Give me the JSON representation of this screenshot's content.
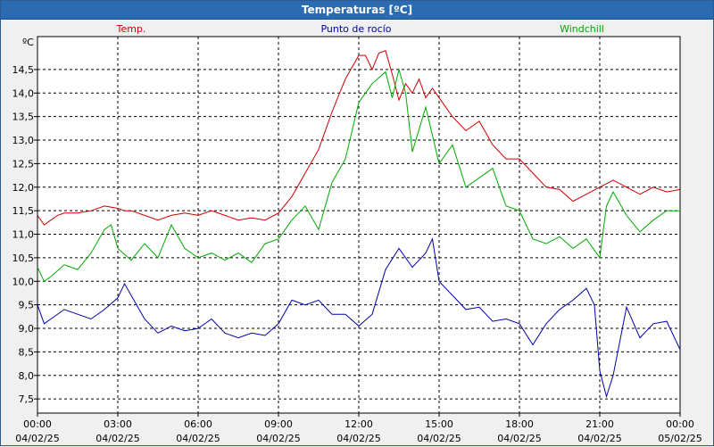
{
  "window": {
    "title": "Temperaturas [ºC]"
  },
  "chart_data": {
    "type": "line",
    "unit_label": "ºC",
    "grid": true,
    "legend_placement": "top",
    "ylim": [
      7.2,
      15.2
    ],
    "y_ticks": [
      7.5,
      8.0,
      8.5,
      9.0,
      9.5,
      10.0,
      10.5,
      11.0,
      11.5,
      12.0,
      12.5,
      13.0,
      13.5,
      14.0,
      14.5
    ],
    "y_tick_labels": [
      "7,5",
      "8,0",
      "8,5",
      "9,0",
      "9,5",
      "10,0",
      "10,5",
      "11,0",
      "11,5",
      "12,0",
      "12,5",
      "13,0",
      "13,5",
      "14,0",
      "14,5"
    ],
    "xlim": [
      0,
      24
    ],
    "x_ticks": [
      {
        "x": 0,
        "time": "00:00",
        "date": "04/02/25"
      },
      {
        "x": 3,
        "time": "03:00",
        "date": "04/02/25"
      },
      {
        "x": 6,
        "time": "06:00",
        "date": "04/02/25"
      },
      {
        "x": 9,
        "time": "09:00",
        "date": "04/02/25"
      },
      {
        "x": 12,
        "time": "12:00",
        "date": "04/02/25"
      },
      {
        "x": 15,
        "time": "15:00",
        "date": "04/02/25"
      },
      {
        "x": 18,
        "time": "18:00",
        "date": "04/02/25"
      },
      {
        "x": 21,
        "time": "21:00",
        "date": "04/02/25"
      },
      {
        "x": 24,
        "time": "00:00",
        "date": "05/02/25"
      }
    ],
    "series": [
      {
        "name": "Temp.",
        "color": "#cc0000",
        "x": [
          0,
          0.25,
          0.5,
          0.75,
          1,
          1.5,
          2,
          2.5,
          3,
          3.25,
          3.5,
          4,
          4.5,
          5,
          5.5,
          6,
          6.5,
          7,
          7.5,
          8,
          8.5,
          9,
          9.5,
          10,
          10.5,
          11,
          11.5,
          12,
          12.25,
          12.5,
          12.75,
          13,
          13.25,
          13.5,
          13.75,
          14,
          14.25,
          14.5,
          14.75,
          15,
          15.5,
          16,
          16.5,
          17,
          17.5,
          18,
          18.5,
          19,
          19.5,
          20,
          20.5,
          21,
          21.5,
          22,
          22.5,
          23,
          23.5,
          24
        ],
        "y": [
          11.4,
          11.2,
          11.3,
          11.4,
          11.45,
          11.45,
          11.5,
          11.6,
          11.55,
          11.5,
          11.5,
          11.4,
          11.3,
          11.4,
          11.45,
          11.4,
          11.5,
          11.4,
          11.3,
          11.35,
          11.3,
          11.45,
          11.8,
          12.3,
          12.8,
          13.6,
          14.3,
          14.8,
          14.8,
          14.5,
          14.85,
          14.9,
          14.4,
          13.85,
          14.2,
          14.0,
          14.3,
          13.9,
          14.1,
          13.9,
          13.5,
          13.2,
          13.4,
          12.9,
          12.6,
          12.6,
          12.3,
          12.0,
          11.95,
          11.7,
          11.85,
          12.0,
          12.15,
          12.0,
          11.85,
          12.0,
          11.9,
          11.95
        ]
      },
      {
        "name": "Punto de rocío",
        "color": "#0000aa",
        "x": [
          0,
          0.25,
          0.5,
          1,
          1.5,
          2,
          2.5,
          3,
          3.25,
          3.5,
          4,
          4.5,
          5,
          5.5,
          6,
          6.5,
          7,
          7.5,
          8,
          8.5,
          9,
          9.5,
          10,
          10.5,
          11,
          11.5,
          12,
          12.5,
          13,
          13.5,
          14,
          14.5,
          14.75,
          15,
          15.5,
          16,
          16.5,
          17,
          17.5,
          18,
          18.5,
          19,
          19.5,
          20,
          20.5,
          20.8,
          21,
          21.25,
          21.5,
          22,
          22.5,
          23,
          23.5,
          24
        ],
        "y": [
          9.5,
          9.1,
          9.2,
          9.4,
          9.3,
          9.2,
          9.4,
          9.65,
          9.95,
          9.7,
          9.2,
          8.9,
          9.05,
          8.95,
          9.0,
          9.2,
          8.9,
          8.8,
          8.9,
          8.85,
          9.1,
          9.6,
          9.5,
          9.6,
          9.3,
          9.3,
          9.05,
          9.3,
          10.25,
          10.7,
          10.3,
          10.6,
          10.9,
          10.0,
          9.7,
          9.4,
          9.45,
          9.15,
          9.2,
          9.1,
          8.65,
          9.1,
          9.4,
          9.6,
          9.85,
          9.5,
          8.1,
          7.55,
          8.0,
          9.45,
          8.8,
          9.1,
          9.15,
          8.55
        ]
      },
      {
        "name": "Windchill",
        "color": "#00aa00",
        "x": [
          0,
          0.25,
          0.5,
          1,
          1.5,
          2,
          2.5,
          2.75,
          3,
          3.5,
          4,
          4.5,
          5,
          5.5,
          6,
          6.5,
          7,
          7.5,
          8,
          8.5,
          9,
          9.5,
          10,
          10.5,
          11,
          11.5,
          12,
          12.5,
          13,
          13.25,
          13.5,
          13.75,
          14,
          14.5,
          15,
          15.5,
          16,
          16.5,
          17,
          17.5,
          18,
          18.5,
          19,
          19.5,
          20,
          20.5,
          21,
          21.25,
          21.5,
          22,
          22.5,
          23,
          23.5,
          24
        ],
        "y": [
          10.3,
          10.0,
          10.1,
          10.35,
          10.25,
          10.6,
          11.1,
          11.2,
          10.7,
          10.45,
          10.8,
          10.5,
          11.2,
          10.7,
          10.5,
          10.6,
          10.45,
          10.6,
          10.4,
          10.8,
          10.9,
          11.3,
          11.6,
          11.1,
          12.1,
          12.6,
          13.8,
          14.2,
          14.45,
          13.9,
          14.5,
          14.0,
          12.75,
          13.7,
          12.5,
          12.9,
          12.0,
          12.2,
          12.4,
          11.6,
          11.5,
          10.9,
          10.8,
          10.95,
          10.7,
          10.9,
          10.5,
          11.6,
          11.9,
          11.4,
          11.05,
          11.3,
          11.5,
          11.5
        ]
      }
    ]
  }
}
